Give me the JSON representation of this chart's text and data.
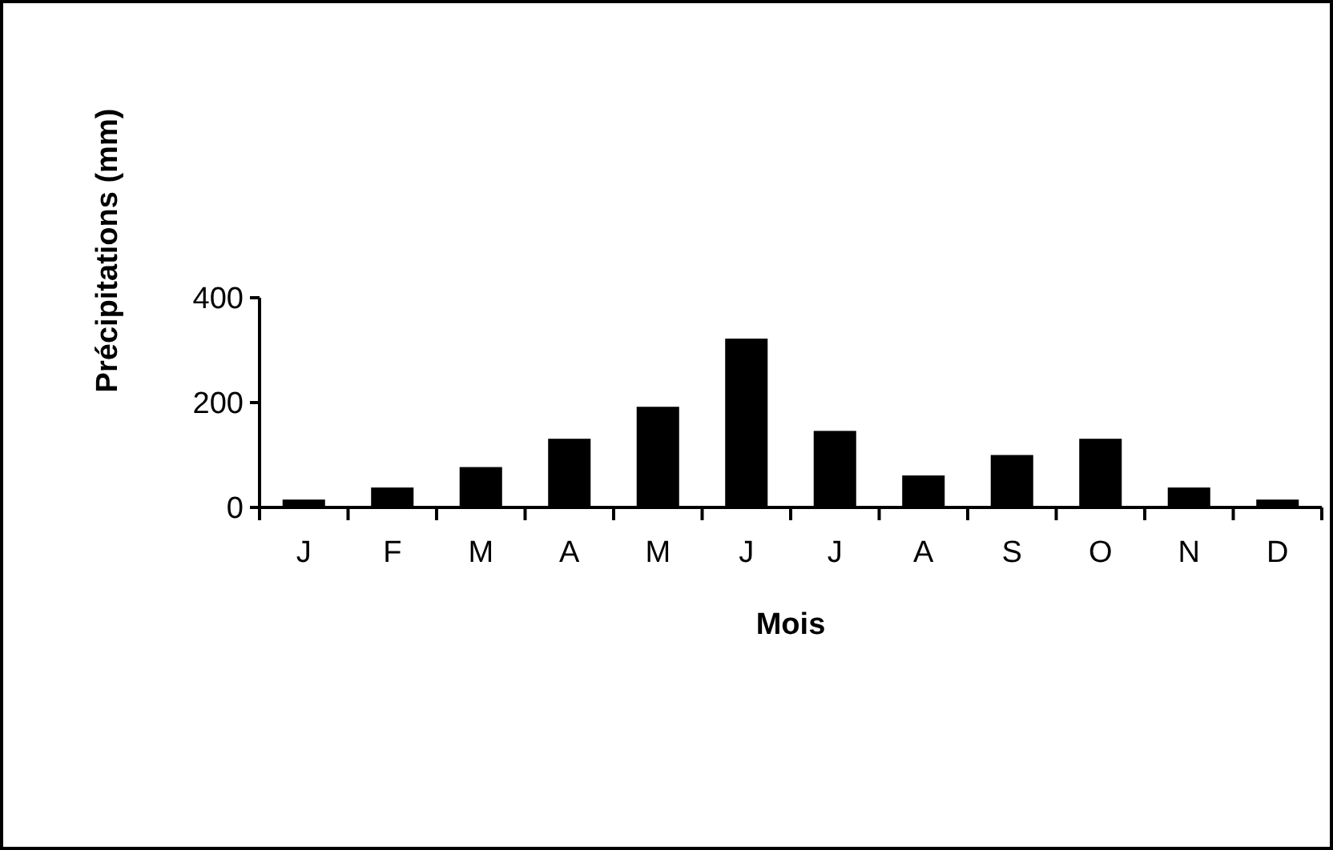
{
  "chart_data": {
    "type": "bar",
    "xlabel": "Mois",
    "ylabel": "Précipitations (mm)",
    "categories": [
      "J",
      "F",
      "M",
      "A",
      "M",
      "J",
      "J",
      "A",
      "S",
      "O",
      "N",
      "D"
    ],
    "values": [
      15,
      38,
      77,
      131,
      192,
      322,
      146,
      61,
      100,
      131,
      38,
      15
    ],
    "color": "#000000",
    "ylim": [
      0,
      400
    ],
    "yticks": [
      0,
      200,
      400
    ],
    "grid": false
  }
}
